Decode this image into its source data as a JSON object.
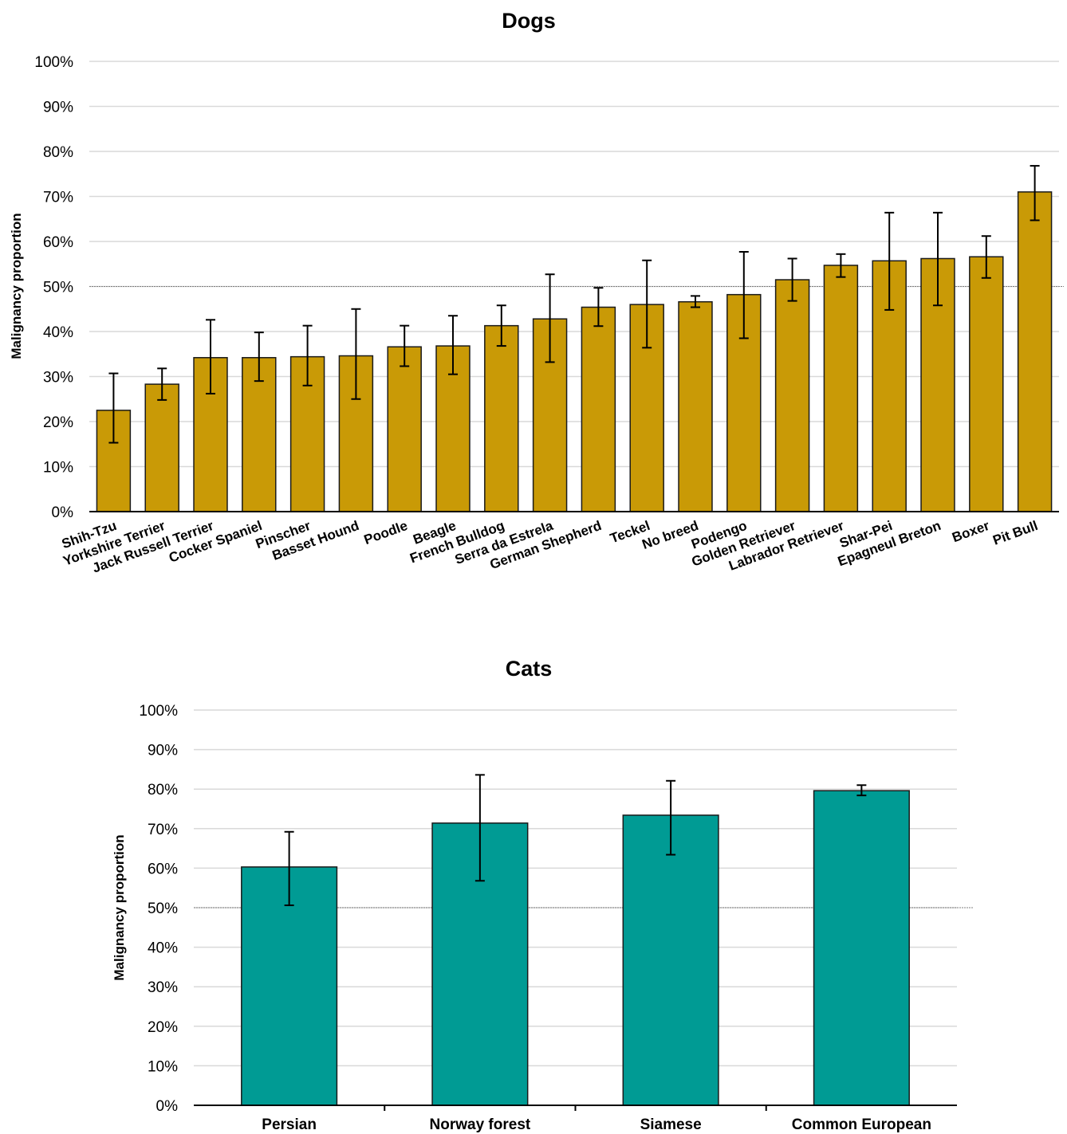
{
  "chart_data": [
    {
      "type": "bar",
      "title": "Dogs",
      "ylabel": "Malignancy proportion",
      "xlabel": "",
      "ylim": [
        0,
        100
      ],
      "ytick_labels": [
        "0%",
        "10%",
        "20%",
        "30%",
        "40%",
        "50%",
        "60%",
        "70%",
        "80%",
        "90%",
        "100%"
      ],
      "reference_line": 50,
      "grid": true,
      "color": "#c99a06",
      "categories": [
        "Shih-Tzu",
        "Yorkshire Terrier",
        "Jack Russell Terrier",
        "Cocker Spaniel",
        "Pinscher",
        "Basset Hound",
        "Poodle",
        "Beagle",
        "French Bulldog",
        "Serra da Estrela",
        "German Shepherd",
        "Teckel",
        "No breed",
        "Podengo",
        "Golden Retriever",
        "Labrador Retriever",
        "Shar-Pei",
        "Epagneul Breton",
        "Boxer",
        "Pit Bull"
      ],
      "values": [
        22.5,
        28.3,
        34.2,
        34.2,
        34.4,
        34.6,
        36.6,
        36.8,
        41.3,
        42.8,
        45.4,
        46.0,
        46.6,
        48.2,
        51.5,
        54.7,
        55.7,
        56.2,
        56.6,
        71.0
      ],
      "error_low": [
        15.3,
        24.8,
        26.2,
        29.0,
        28.0,
        25.0,
        32.3,
        30.5,
        36.8,
        33.2,
        41.2,
        36.4,
        45.4,
        38.5,
        46.8,
        52.1,
        44.8,
        45.8,
        51.9,
        64.7
      ],
      "error_high": [
        30.7,
        31.8,
        42.6,
        39.8,
        41.3,
        45.0,
        41.3,
        43.5,
        45.8,
        52.7,
        49.7,
        55.8,
        47.9,
        57.7,
        56.2,
        57.2,
        66.4,
        66.4,
        61.2,
        76.8
      ]
    },
    {
      "type": "bar",
      "title": "Cats",
      "ylabel": "Malignancy proportion",
      "xlabel": "",
      "ylim": [
        0,
        100
      ],
      "ytick_labels": [
        "0%",
        "10%",
        "20%",
        "30%",
        "40%",
        "50%",
        "60%",
        "70%",
        "80%",
        "90%",
        "100%"
      ],
      "reference_line": 50,
      "grid": true,
      "color": "#009b94",
      "categories": [
        "Persian",
        "Norway forest",
        "Siamese",
        "Common European"
      ],
      "values": [
        60.3,
        71.4,
        73.4,
        79.6
      ],
      "error_low": [
        50.6,
        56.8,
        63.4,
        78.4
      ],
      "error_high": [
        69.2,
        83.6,
        82.1,
        81.0
      ]
    }
  ]
}
